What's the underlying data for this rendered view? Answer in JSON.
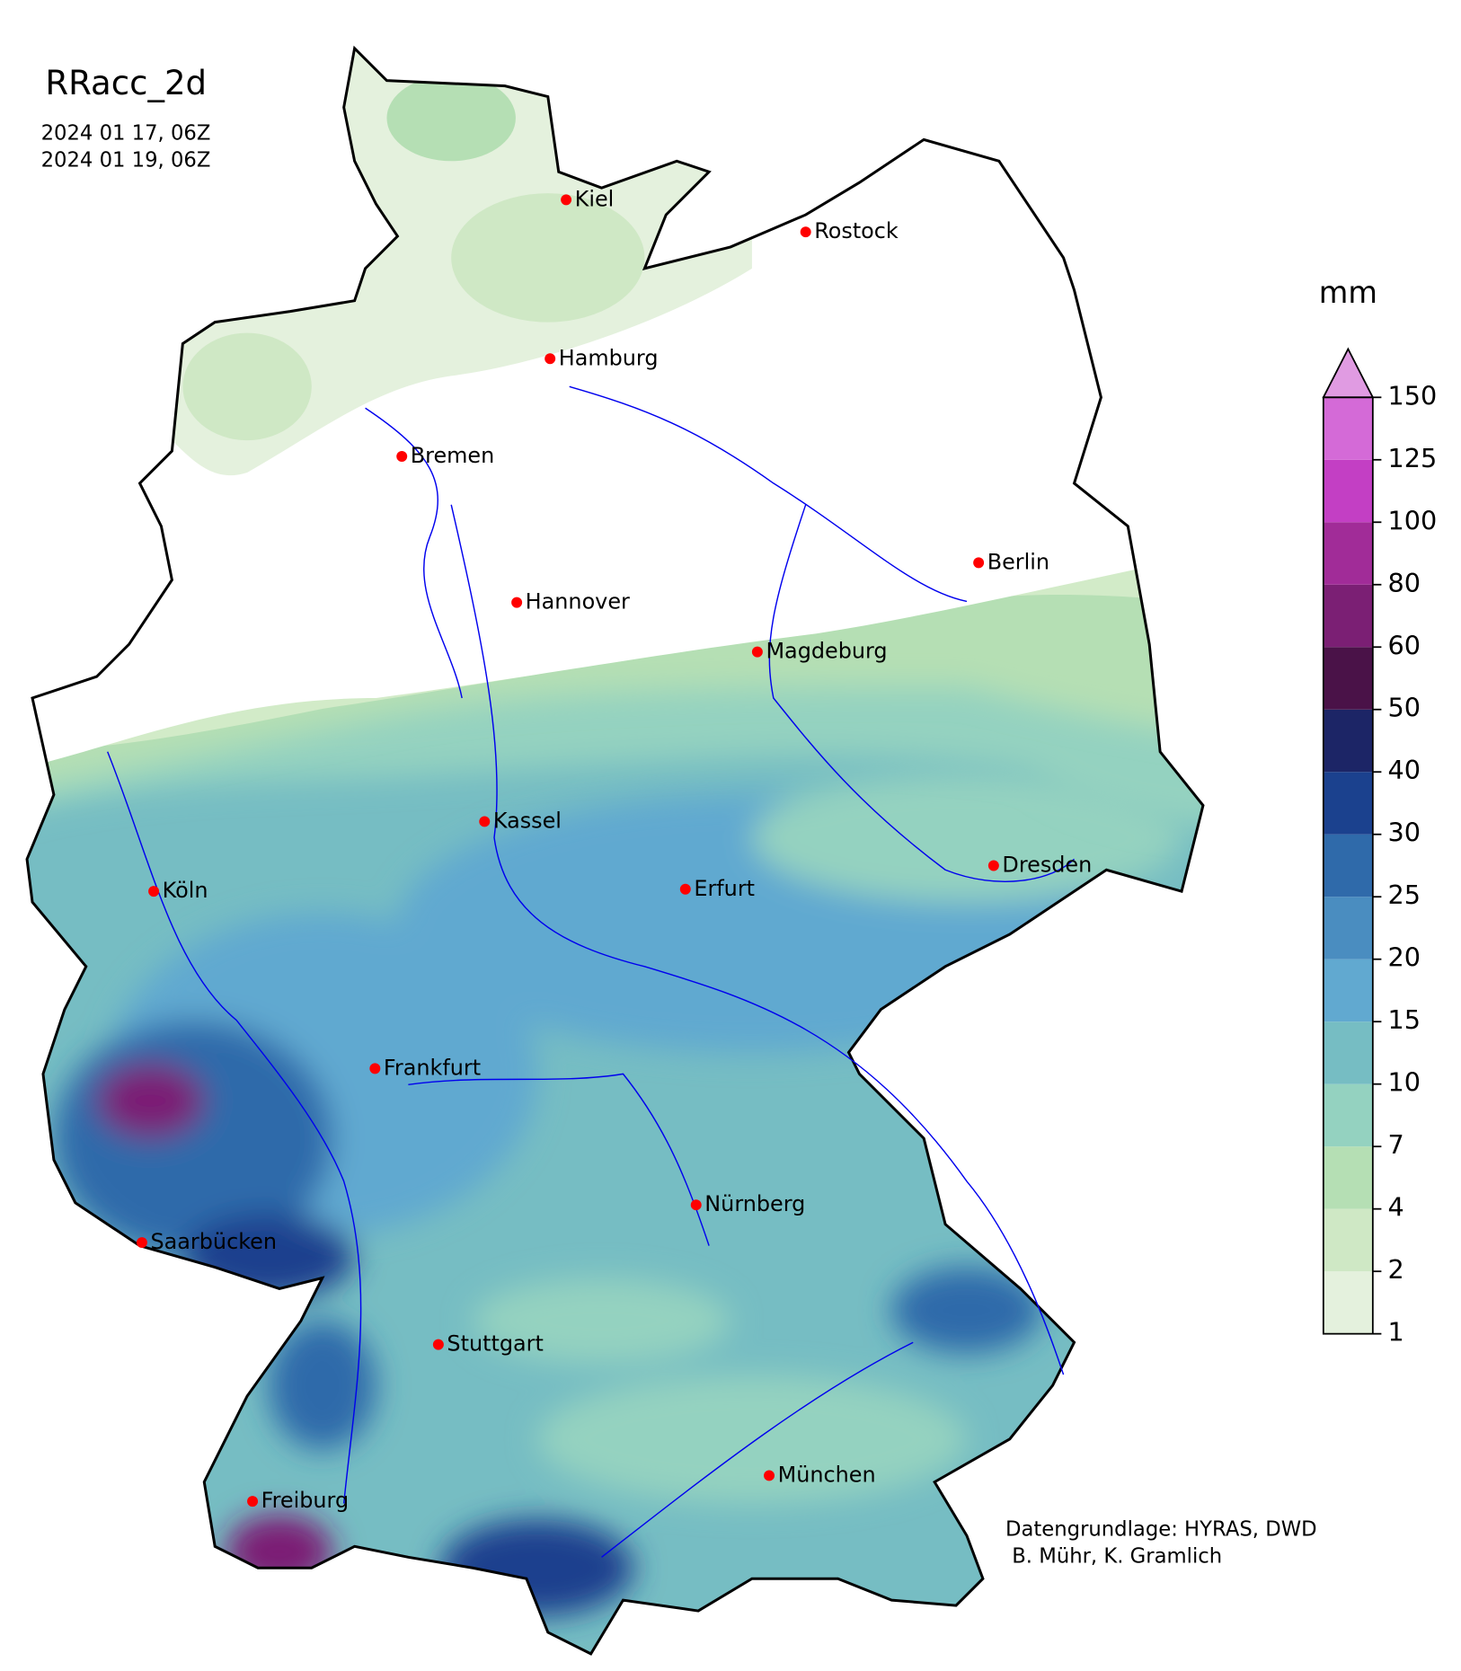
{
  "map": {
    "title": "RRacc_2d",
    "period": [
      "2024 01 17, 06Z",
      "2024 01 19, 06Z"
    ],
    "cities": [
      "Kiel",
      "Rostock",
      "Hamburg",
      "Bremen",
      "Berlin",
      "Hannover",
      "Magdeburg",
      "Kassel",
      "Köln",
      "Erfurt",
      "Dresden",
      "Frankfurt",
      "Nürnberg",
      "Saarbücken",
      "Stuttgart",
      "München",
      "Freiburg"
    ],
    "colorbar": {
      "label": "mm",
      "levels": [
        1,
        2,
        4,
        7,
        10,
        15,
        20,
        25,
        30,
        40,
        50,
        60,
        80,
        100,
        125,
        150
      ],
      "colors": [
        "#e4f1dd",
        "#cfe8c5",
        "#b5dfb4",
        "#94d2c0",
        "#76bdc3",
        "#61a9d0",
        "#4a8dc0",
        "#2f6aaa",
        "#1b418e",
        "#1c2566",
        "#4a1248",
        "#7b1f74",
        "#a12c98",
        "#c33fc4",
        "#d46ad7"
      ],
      "extend_color": "#e09be2"
    },
    "credit": [
      "Datengrundlage: HYRAS, DWD",
      " B. Mühr, K. Gramlich"
    ]
  }
}
